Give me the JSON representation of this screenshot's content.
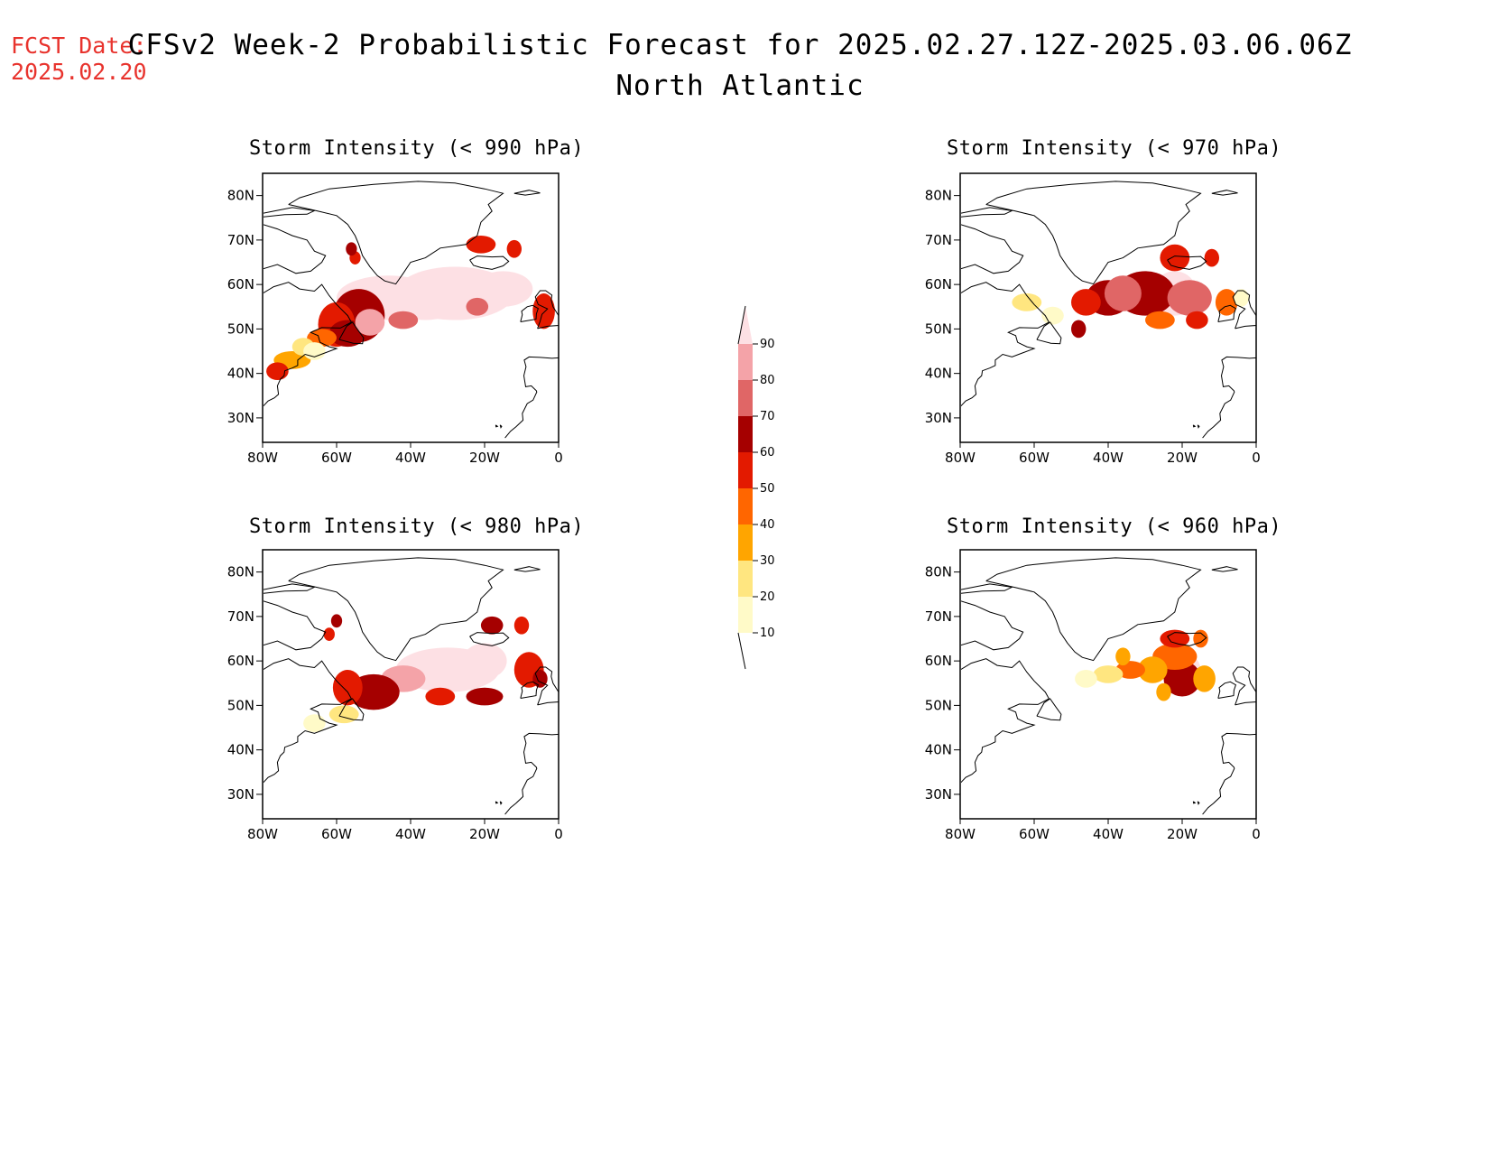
{
  "header": {
    "fcst_label": "FCST Date:",
    "fcst_date": "2025.02.20",
    "title": "CFSv2 Week-2 Probabilistic Forecast for 2025.02.27.12Z-2025.03.06.06Z",
    "subtitle": "North Atlantic"
  },
  "axes": {
    "lat_labels": [
      "80N",
      "70N",
      "60N",
      "50N",
      "40N",
      "30N"
    ],
    "lon_labels": [
      "80W",
      "60W",
      "40W",
      "20W",
      "0"
    ],
    "lat_values": [
      80,
      70,
      60,
      50,
      40,
      30
    ],
    "lon_values": [
      -80,
      -60,
      -40,
      -20,
      0
    ]
  },
  "panels": [
    {
      "id": "p990",
      "title": "Storm Intensity (< 990 hPa)"
    },
    {
      "id": "p970",
      "title": "Storm Intensity (< 970 hPa)"
    },
    {
      "id": "p980",
      "title": "Storm Intensity (< 980 hPa)"
    },
    {
      "id": "p960",
      "title": "Storm Intensity (< 960 hPa)"
    }
  ],
  "colorbar": {
    "labels": [
      "90",
      "80",
      "70",
      "60",
      "50",
      "40",
      "30",
      "20",
      "10"
    ],
    "colors": [
      "#fde0e4",
      "#f4a3a8",
      "#e06666",
      "#a50000",
      "#e31a00",
      "#ff6600",
      "#ffa500",
      "#ffe680",
      "#fffac8"
    ]
  }
}
